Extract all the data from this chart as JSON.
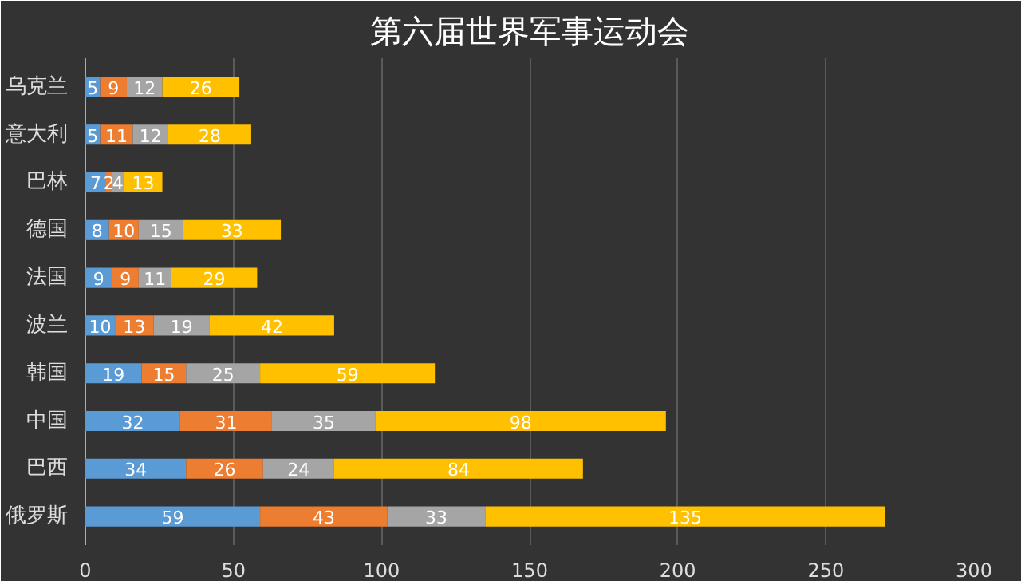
{
  "chart_data": {
    "type": "bar",
    "orientation": "horizontal",
    "stacked": true,
    "title": "第六届世界军事运动会",
    "categories": [
      "乌克兰",
      "意大利",
      "巴林",
      "德国",
      "法国",
      "波兰",
      "韩国",
      "中国",
      "巴西",
      "俄罗斯"
    ],
    "series": [
      {
        "color": "#5b9bd5",
        "values": [
          5,
          5,
          7,
          8,
          9,
          10,
          19,
          32,
          34,
          59
        ]
      },
      {
        "color": "#ed7d31",
        "values": [
          9,
          11,
          2,
          10,
          9,
          13,
          15,
          31,
          26,
          43
        ]
      },
      {
        "color": "#a5a5a5",
        "values": [
          12,
          12,
          4,
          15,
          11,
          19,
          25,
          35,
          24,
          33
        ]
      },
      {
        "color": "#ffc000",
        "values": [
          26,
          28,
          13,
          33,
          29,
          42,
          59,
          98,
          84,
          135
        ]
      }
    ],
    "xlim": [
      0,
      300
    ],
    "xticks": [
      0,
      50,
      100,
      150,
      200,
      250,
      300
    ],
    "grid": "x",
    "data_labels": true
  }
}
